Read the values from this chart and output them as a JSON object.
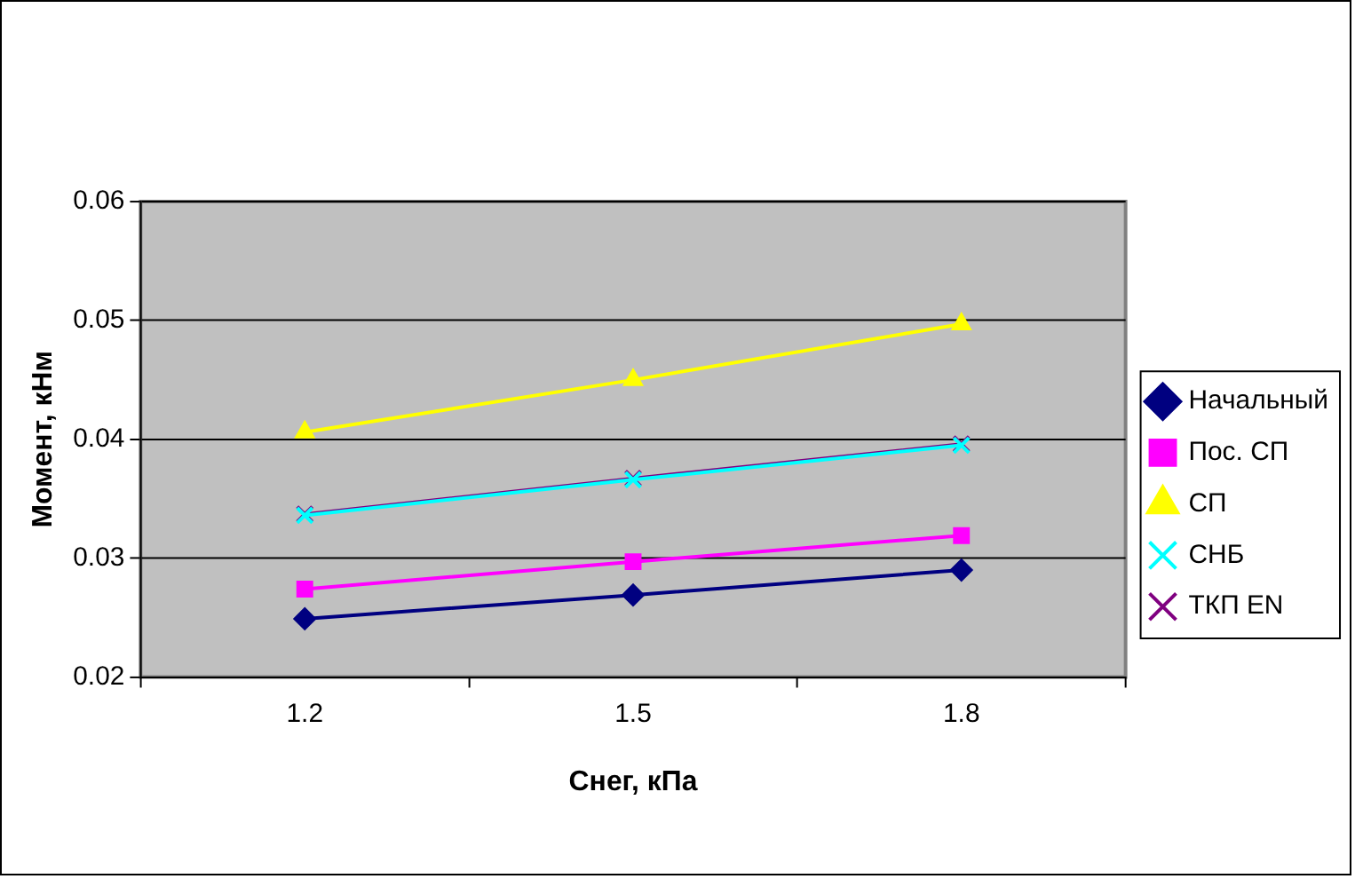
{
  "chart_data": {
    "type": "line",
    "xlabel": "Снег, кПа",
    "ylabel": "Момент, кНм",
    "categories": [
      "1.2",
      "1.5",
      "1.8"
    ],
    "series": [
      {
        "name": "Начальный",
        "color": "#000080",
        "marker": "diamond",
        "values": [
          0.0249,
          0.0269,
          0.029
        ]
      },
      {
        "name": "Пос. СП",
        "color": "#ff00ff",
        "marker": "square",
        "values": [
          0.0274,
          0.0297,
          0.0319
        ]
      },
      {
        "name": "СП",
        "color": "#ffff00",
        "marker": "triangle",
        "values": [
          0.0406,
          0.045,
          0.0497
        ]
      },
      {
        "name": "СНБ",
        "color": "#00ffff",
        "marker": "cross",
        "values": [
          0.0336,
          0.0366,
          0.0395
        ]
      },
      {
        "name": "ТКП EN",
        "color": "#800080",
        "marker": "cross",
        "values": [
          0.0337,
          0.0367,
          0.0396
        ]
      }
    ],
    "ylim": [
      0.02,
      0.06
    ],
    "yticks": [
      0.02,
      0.03,
      0.04,
      0.05,
      0.06
    ],
    "grid": "y",
    "legend": "right"
  }
}
